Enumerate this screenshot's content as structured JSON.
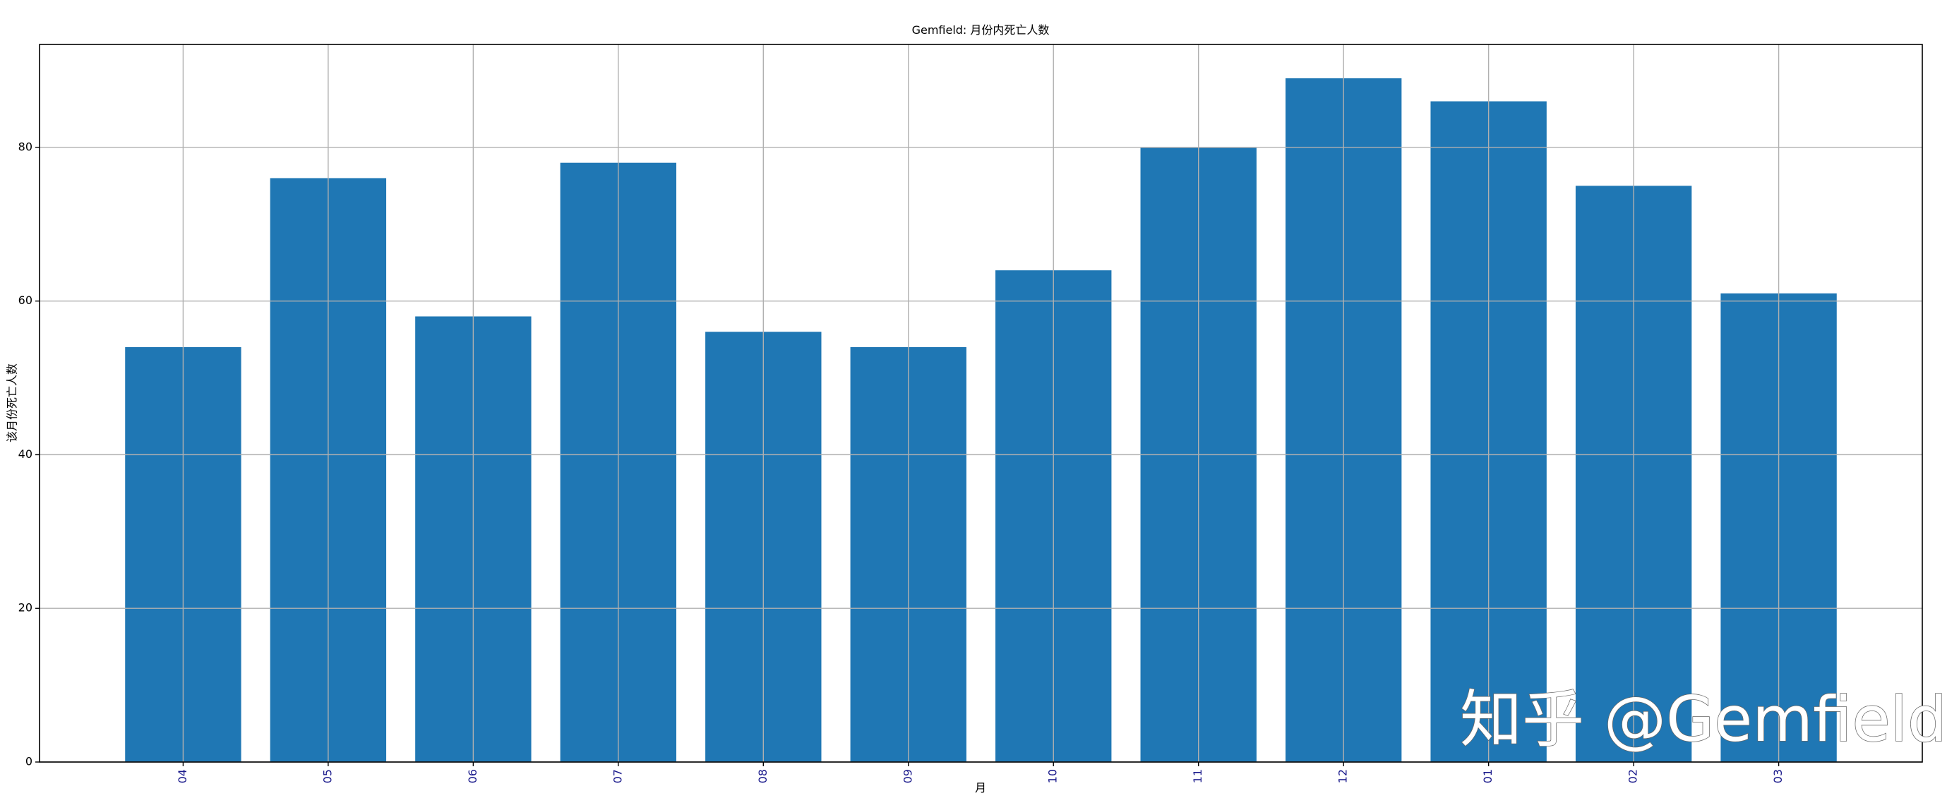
{
  "chart_data": {
    "type": "bar",
    "title": "Gemfield: 月份内死亡人数",
    "x_label": "月",
    "y_label": "该月份死亡人数",
    "categories": [
      "04",
      "05",
      "06",
      "07",
      "08",
      "09",
      "10",
      "11",
      "12",
      "01",
      "02",
      "03"
    ],
    "values": [
      54,
      76,
      58,
      78,
      56,
      54,
      64,
      80,
      89,
      86,
      75,
      61
    ],
    "color": "#1f77b4",
    "ylim": [
      0,
      93.4
    ],
    "yticks": [
      0,
      20,
      40,
      60,
      80
    ],
    "grid": true,
    "watermark": "知乎 @Gemfield"
  }
}
